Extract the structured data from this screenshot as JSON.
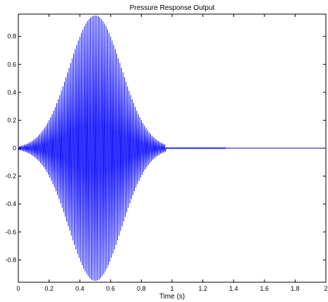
{
  "chart_data": {
    "type": "line",
    "title": "Pressure Response Output",
    "xlabel": "Time (s)",
    "ylabel": "",
    "xlim": [
      0,
      2
    ],
    "ylim": [
      -0.96,
      0.96
    ],
    "x_ticks": [
      0,
      0.2,
      0.4,
      0.6,
      0.8,
      1,
      1.2,
      1.4,
      1.6,
      1.8,
      2
    ],
    "x_tick_labels": [
      "0",
      "0.2",
      "0.4",
      "0.6",
      "0.8",
      "1",
      "1.2",
      "1.4",
      "1.6",
      "1.8",
      "2"
    ],
    "y_ticks": [
      -0.8,
      -0.6,
      -0.4,
      -0.2,
      0,
      0.2,
      0.4,
      0.6,
      0.8
    ],
    "y_tick_labels": [
      "-0.8",
      "-0.6",
      "-0.4",
      "-0.2",
      "0",
      "0.2",
      "0.4",
      "0.6",
      "0.8"
    ],
    "grid": false,
    "series": [
      {
        "color": "#0000ff",
        "signal": "oscillation inside a bell-shaped envelope",
        "envelope_peak_time_s": 0.5,
        "envelope_peak_amplitude": 0.95,
        "envelope_width_s": 0.17,
        "oscillation_frequency_hz": 100,
        "main_response_ends_s": 0.96,
        "residual_noise_until_s": 1.35
      }
    ]
  }
}
